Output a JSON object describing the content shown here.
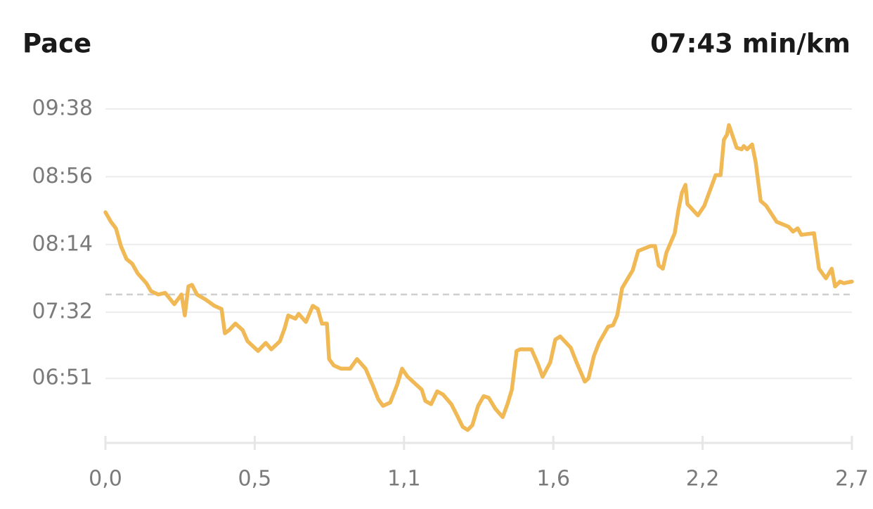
{
  "chart_data": {
    "type": "line",
    "title": "Pace",
    "average": {
      "value": 463,
      "label": "07:43 min/km"
    },
    "color": "#f0b955",
    "grid": true,
    "xlim": [
      0,
      2.7
    ],
    "xticks": [
      {
        "value": 0,
        "label": "0,0"
      },
      {
        "value": 0.54,
        "label": "0,5"
      },
      {
        "value": 1.08,
        "label": "1,1"
      },
      {
        "value": 1.62,
        "label": "1,6"
      },
      {
        "value": 2.16,
        "label": "2,2"
      },
      {
        "value": 2.7,
        "label": "2,7"
      }
    ],
    "ylim": [
      371,
      578
    ],
    "yticks": [
      {
        "value": 411,
        "label": "06:51"
      },
      {
        "value": 452,
        "label": "07:32"
      },
      {
        "value": 494,
        "label": "08:14"
      },
      {
        "value": 536,
        "label": "08:56"
      },
      {
        "value": 578,
        "label": "09:38"
      }
    ],
    "x": [
      0,
      0.02,
      0.038,
      0.056,
      0.076,
      0.097,
      0.117,
      0.148,
      0.165,
      0.191,
      0.216,
      0.249,
      0.275,
      0.287,
      0.3,
      0.313,
      0.331,
      0.361,
      0.394,
      0.42,
      0.432,
      0.448,
      0.47,
      0.496,
      0.514,
      0.552,
      0.58,
      0.6,
      0.631,
      0.648,
      0.661,
      0.687,
      0.699,
      0.725,
      0.75,
      0.768,
      0.783,
      0.801,
      0.809,
      0.826,
      0.852,
      0.885,
      0.91,
      0.941,
      0.966,
      0.987,
      1.004,
      1.03,
      1.055,
      1.073,
      1.093,
      1.144,
      1.157,
      1.178,
      1.2,
      1.221,
      1.251,
      1.272,
      1.292,
      1.31,
      1.327,
      1.348,
      1.368,
      1.386,
      1.411,
      1.437,
      1.454,
      1.47,
      1.487,
      1.5,
      1.541,
      1.564,
      1.581,
      1.609,
      1.627,
      1.645,
      1.683,
      1.704,
      1.734,
      1.747,
      1.767,
      1.785,
      1.818,
      1.836,
      1.851,
      1.869,
      1.907,
      1.927,
      1.971,
      1.988,
      2.001,
      2.016,
      2.029,
      2.059,
      2.072,
      2.085,
      2.098,
      2.105,
      2.143,
      2.166,
      2.207,
      2.225,
      2.237,
      2.248,
      2.255,
      2.283,
      2.301,
      2.309,
      2.321,
      2.339,
      2.352,
      2.37,
      2.39,
      2.428,
      2.471,
      2.487,
      2.504,
      2.517,
      2.563,
      2.581,
      2.606,
      2.627,
      2.639,
      2.657,
      2.67,
      2.7
    ],
    "values": [
      514,
      508,
      504,
      493,
      485,
      482,
      476,
      470,
      465,
      463,
      464,
      457,
      463,
      450,
      468,
      469,
      463,
      460,
      456,
      454,
      439,
      441,
      445,
      441,
      434,
      428,
      433,
      429,
      434,
      442,
      450,
      448,
      451,
      446,
      456,
      454,
      445,
      445,
      423,
      419,
      417,
      417,
      423,
      417,
      407,
      398,
      394,
      396,
      407,
      417,
      412,
      404,
      397,
      395,
      403,
      401,
      395,
      388,
      381,
      379,
      382,
      394,
      400,
      399,
      392,
      387,
      395,
      404,
      428,
      429,
      429,
      420,
      412,
      421,
      435,
      437,
      430,
      421,
      409,
      411,
      425,
      433,
      443,
      444,
      450,
      467,
      478,
      490,
      493,
      493,
      481,
      479,
      489,
      501,
      515,
      526,
      531,
      519,
      512,
      518,
      537,
      537,
      559,
      562,
      568,
      554,
      553,
      555,
      553,
      556,
      545,
      521,
      518,
      508,
      505,
      502,
      504,
      500,
      501,
      479,
      473,
      479,
      468,
      471,
      470,
      471
    ]
  }
}
